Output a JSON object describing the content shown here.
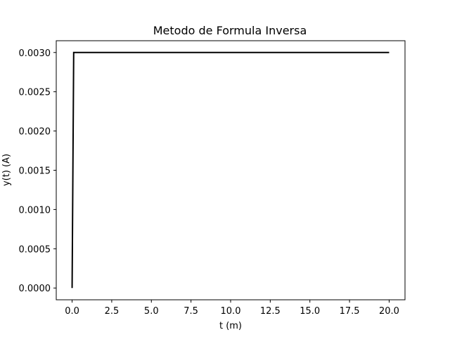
{
  "chart_data": {
    "type": "line",
    "title": "Metodo de Formula Inversa",
    "xlabel": "t (m)",
    "ylabel": "y(t) (A)",
    "xlim": [
      -1.0,
      21.0
    ],
    "ylim": [
      -0.00015,
      0.00315
    ],
    "xticks": [
      0.0,
      2.5,
      5.0,
      7.5,
      10.0,
      12.5,
      15.0,
      17.5,
      20.0
    ],
    "xtick_labels": [
      "0.0",
      "2.5",
      "5.0",
      "7.5",
      "10.0",
      "12.5",
      "15.0",
      "17.5",
      "20.0"
    ],
    "yticks": [
      0.0,
      0.0005,
      0.001,
      0.0015,
      0.002,
      0.0025,
      0.003
    ],
    "ytick_labels": [
      "0.0000",
      "0.0005",
      "0.0010",
      "0.0015",
      "0.0020",
      "0.0025",
      "0.0030"
    ],
    "grid": false,
    "series": [
      {
        "color": "#000000",
        "x": [
          0.0,
          0.1,
          0.2,
          20.0
        ],
        "y": [
          0.0,
          0.003,
          0.003,
          0.003
        ]
      }
    ]
  }
}
